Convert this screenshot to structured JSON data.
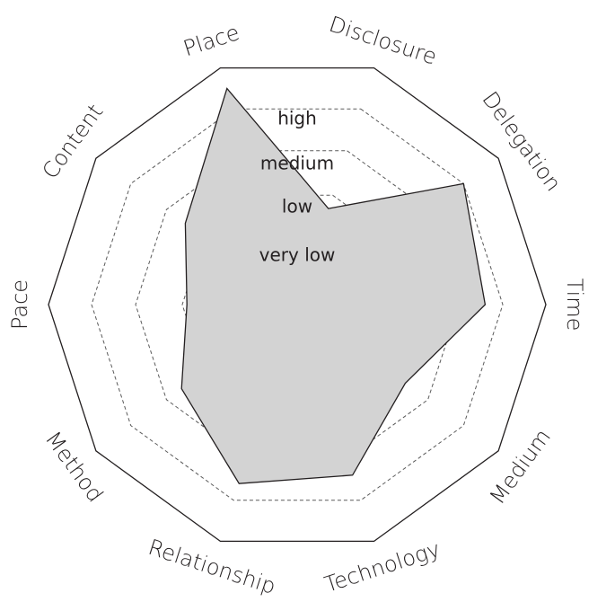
{
  "chart_data": {
    "type": "radar",
    "axes": [
      "Disclosure",
      "Delegation",
      "Time",
      "Medium",
      "Technology",
      "Relationship",
      "Method",
      "Pace",
      "Content",
      "Place"
    ],
    "levels": [
      "very low",
      "low",
      "medium",
      "high"
    ],
    "values": [
      1.7,
      4.0,
      3.6,
      2.4,
      3.4,
      3.6,
      2.6,
      1.9,
      2.5,
      4.5
    ],
    "scale_max": 5,
    "grid": "dashed",
    "colors": {
      "fill": "#d3d3d3",
      "outline": "#231f20",
      "grid": "#5a5a5a"
    }
  }
}
